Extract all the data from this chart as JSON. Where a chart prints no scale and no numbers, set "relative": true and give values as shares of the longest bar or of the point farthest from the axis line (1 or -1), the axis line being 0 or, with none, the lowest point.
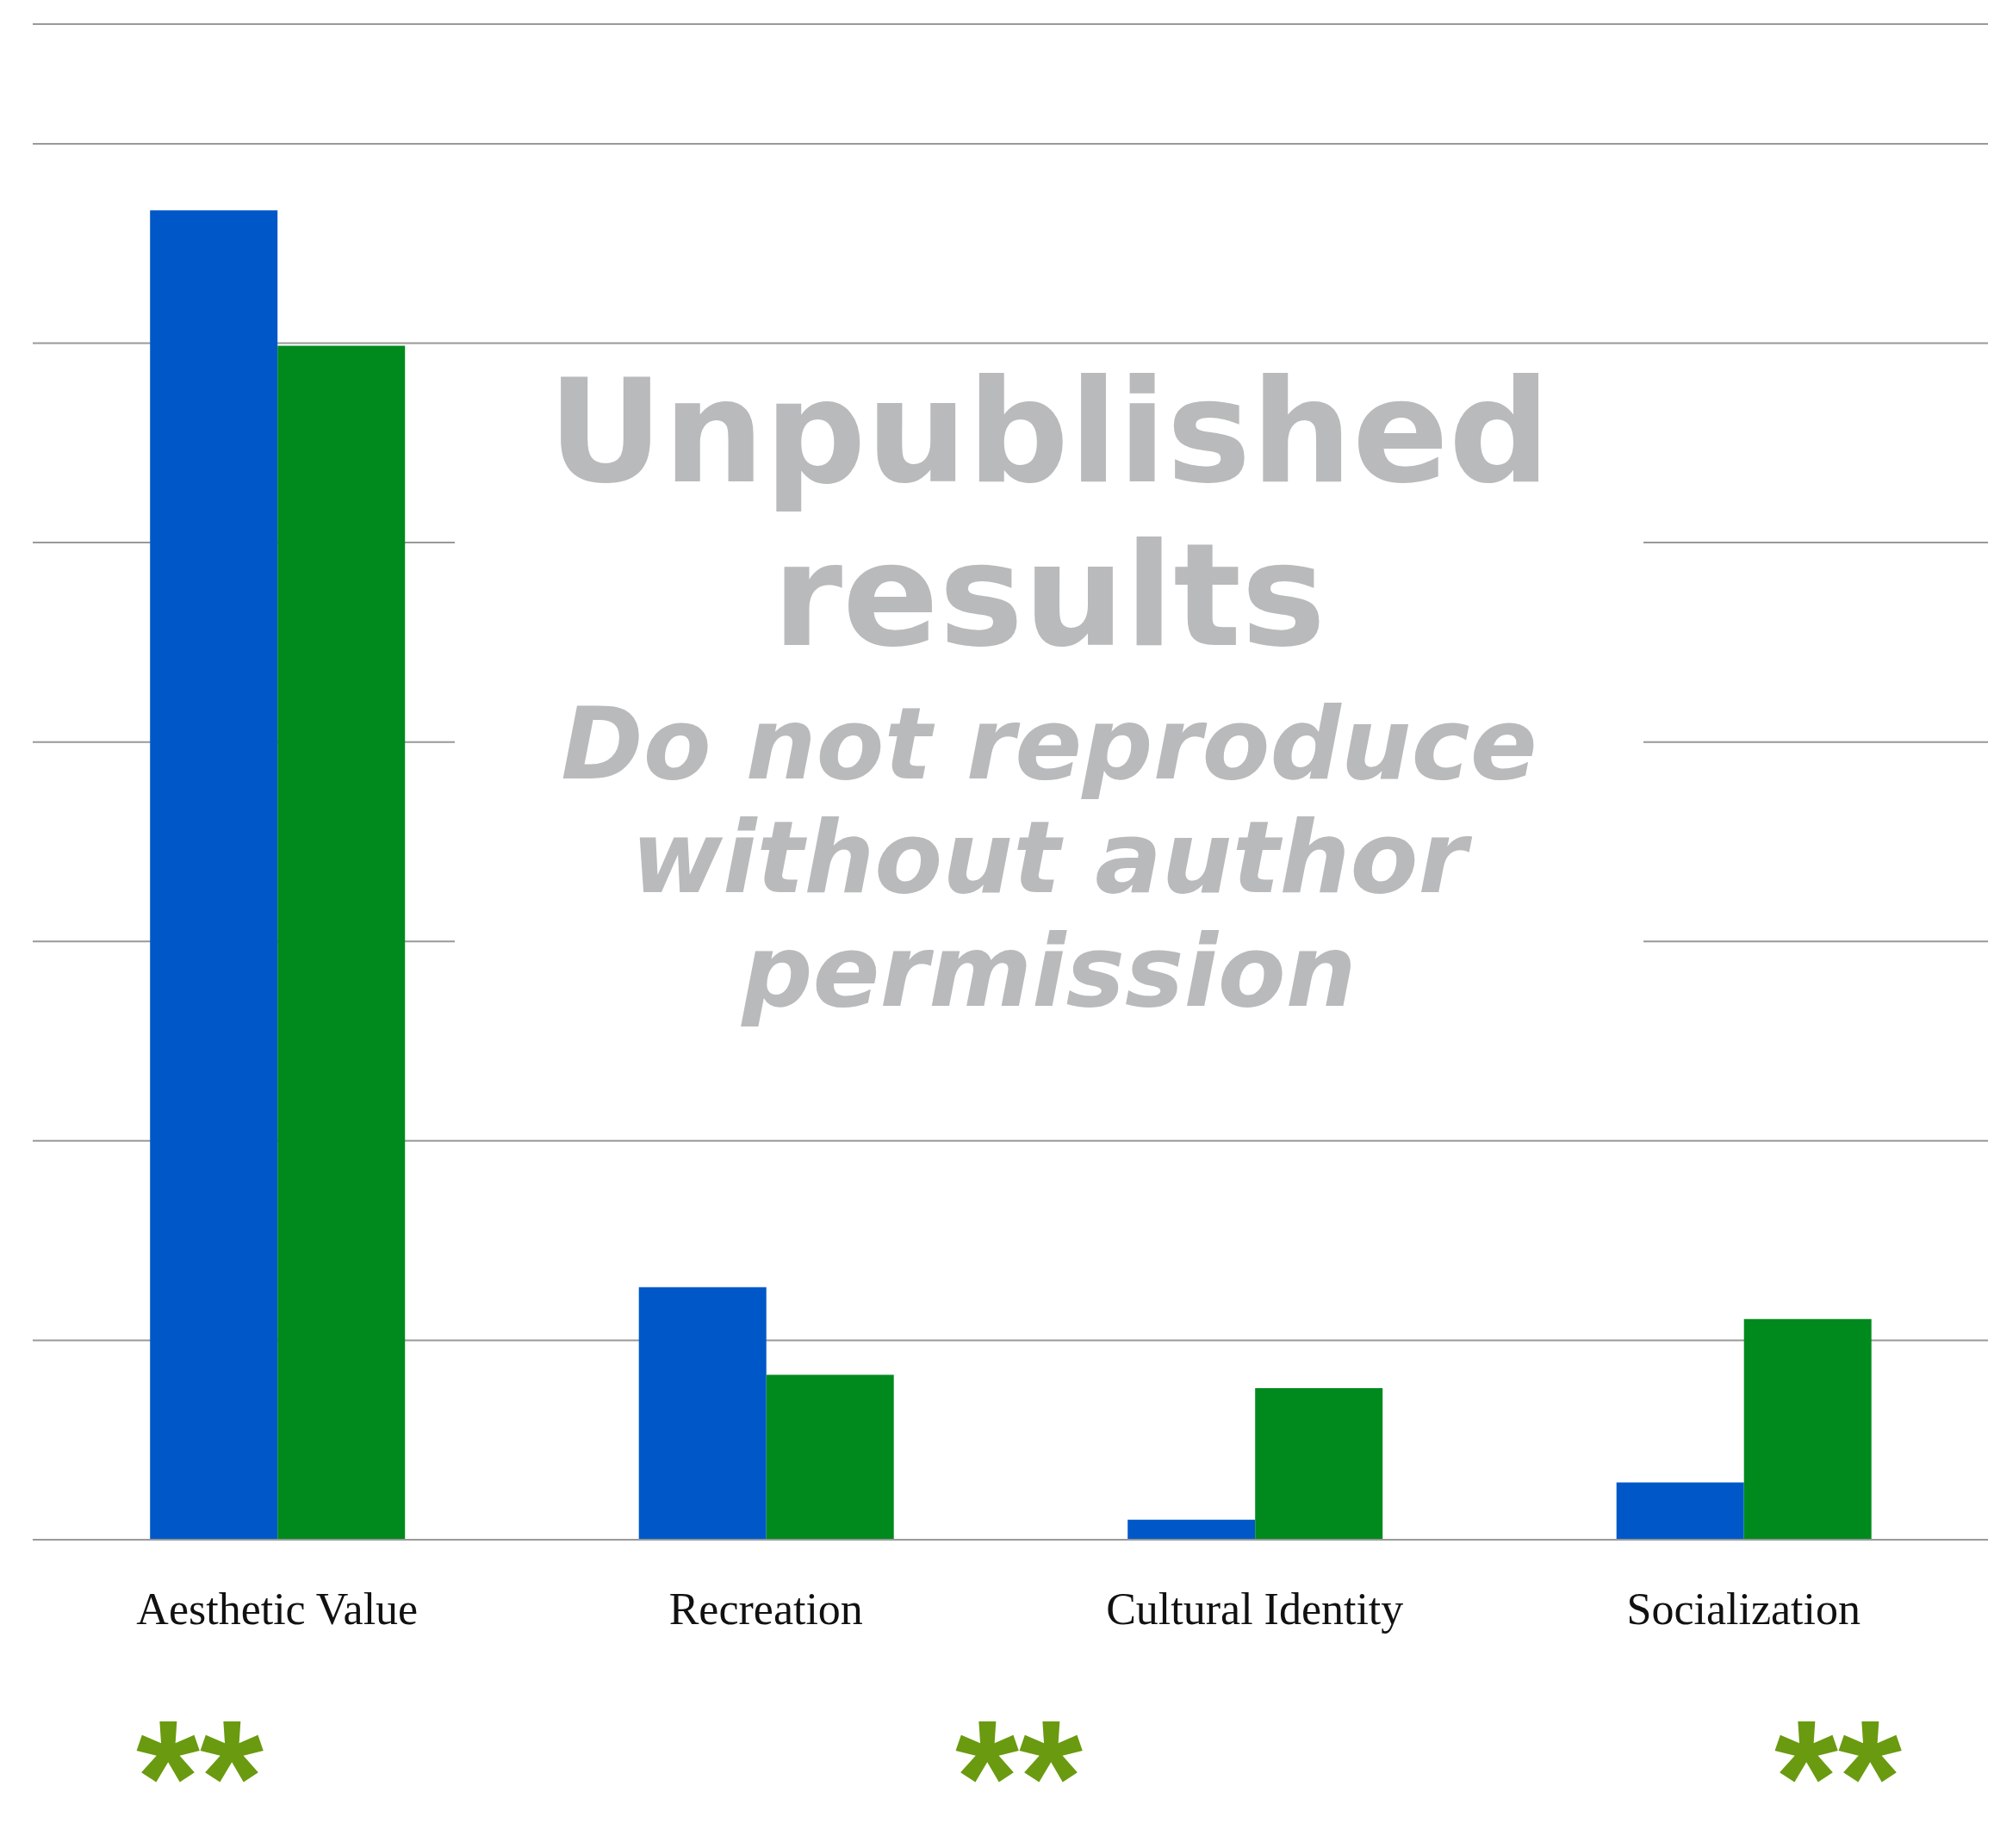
{
  "chart_data": {
    "type": "bar",
    "relative": true,
    "categories": [
      "Aesthetic Value",
      "Recreation",
      "Cultural Identity",
      "Socialization"
    ],
    "series": [
      {
        "color": "#0058c8",
        "values": [
          1,
          0.19,
          0.015,
          0.043
        ]
      },
      {
        "color": "#008a1e",
        "values": [
          0.898,
          0.124,
          0.114,
          0.166
        ]
      }
    ],
    "grid": "y",
    "legend": false,
    "annotations": [
      "Unpublished results",
      "Do not reproduce without author permission",
      "**",
      "**",
      "**"
    ]
  }
}
